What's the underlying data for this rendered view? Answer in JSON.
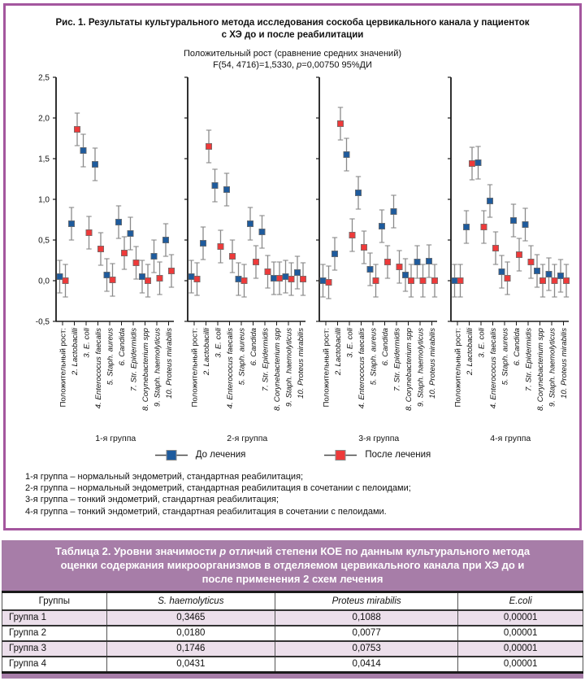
{
  "figure": {
    "title_line1": "Рис. 1. Результаты культурального метода исследования соскоба цервикального канала у пациенток",
    "title_line2": "с ХЭ до и после реабилитации",
    "subtitle": "Положительный рост (сравнение средних значений)",
    "stats_pre": "F(54, 4716)=1,5330, ",
    "stats_p": "p",
    "stats_post": "=0,00750 95%ДИ"
  },
  "chart_data": {
    "type": "scatter",
    "ylim": [
      -0.5,
      2.5
    ],
    "yticks": [
      {
        "v": 2.5,
        "label": "2,5"
      },
      {
        "v": 2.0,
        "label": "2,0"
      },
      {
        "v": 1.5,
        "label": "1,5"
      },
      {
        "v": 1.0,
        "label": "1,0"
      },
      {
        "v": 0.5,
        "label": "0,5"
      },
      {
        "v": 0.0,
        "label": "0,0"
      },
      {
        "v": -0.5,
        "label": "-0,5"
      }
    ],
    "categories": [
      "Положительный рост:",
      "2. Lactobacilli",
      "3. E. coli",
      "4. Enterococus faecalis",
      "5. Staph. aureus",
      "6. Candida",
      "7. Str. Epidermidis",
      "8. Corynebacterium spp",
      "9. Staph. haemolyticus",
      "10. Proteus mirabilis"
    ],
    "error": 0.2,
    "series_names": [
      "До лечения",
      "После лечения"
    ],
    "colors": {
      "before": "#1e5b9d",
      "after": "#ee3a3a",
      "error_bar": "#8a8a8a"
    },
    "panels": [
      {
        "label": "1-я группа",
        "before": [
          0.05,
          0.7,
          1.6,
          1.43,
          0.07,
          0.72,
          0.58,
          0.05,
          0.3,
          0.5
        ],
        "after": [
          0.0,
          1.86,
          0.59,
          0.39,
          0.01,
          0.34,
          0.22,
          0.0,
          0.03,
          0.12
        ]
      },
      {
        "label": "2-я группа",
        "before": [
          0.05,
          0.46,
          1.17,
          1.12,
          0.02,
          0.7,
          0.6,
          0.03,
          0.05,
          0.1
        ],
        "after": [
          0.02,
          1.65,
          0.42,
          0.3,
          0.0,
          0.23,
          0.11,
          0.03,
          0.02,
          0.02
        ]
      },
      {
        "label": "3-я группа",
        "before": [
          0.0,
          0.33,
          1.55,
          1.08,
          0.14,
          0.67,
          0.85,
          0.07,
          0.23,
          0.24
        ],
        "after": [
          -0.02,
          1.93,
          0.56,
          0.41,
          0.0,
          0.23,
          0.17,
          0.0,
          0.0,
          0.0
        ]
      },
      {
        "label": "4-я группа",
        "before": [
          0.0,
          0.66,
          1.45,
          0.98,
          0.11,
          0.74,
          0.69,
          0.12,
          0.08,
          0.06
        ],
        "after": [
          0.0,
          1.44,
          0.66,
          0.4,
          0.03,
          0.32,
          0.23,
          0.0,
          0.0,
          0.0
        ]
      }
    ]
  },
  "legend": {
    "before_label": "До лечения",
    "after_label": "После лечения"
  },
  "footnotes": [
    "1-я группа – нормальный эндометрий, стандартная реабилитация;",
    "2-я группа – нормальный эндометрий, стандартная реабилитация в сочетании с пелоидами;",
    "3-я группа – тонкий эндометрий, стандартная реабилитация;",
    "4-я группа – тонкий эндометрий, стандартная реабилитация в сочетании с пелоидами."
  ],
  "table": {
    "title_pre": "Таблица 2. Уровни значимости ",
    "title_p": "р",
    "title_post": " отличий степени КОЕ по данным культурального метода оценки содержания микроорганизмов в отделяемом цервикального канала при ХЭ до и после применения 2 схем лечения",
    "columns": [
      "Группы",
      "S. haemolyticus",
      "Proteus mirabilis",
      "E.coli"
    ],
    "rows": [
      [
        "Группа 1",
        "0,3465",
        "0,1088",
        "0,00001"
      ],
      [
        "Группа 2",
        "0,0180",
        "0,0077",
        "0,00001"
      ],
      [
        "Группа 3",
        "0,1746",
        "0,0753",
        "0,00001"
      ],
      [
        "Группа 4",
        "0,0431",
        "0,0414",
        "0,00001"
      ]
    ]
  }
}
